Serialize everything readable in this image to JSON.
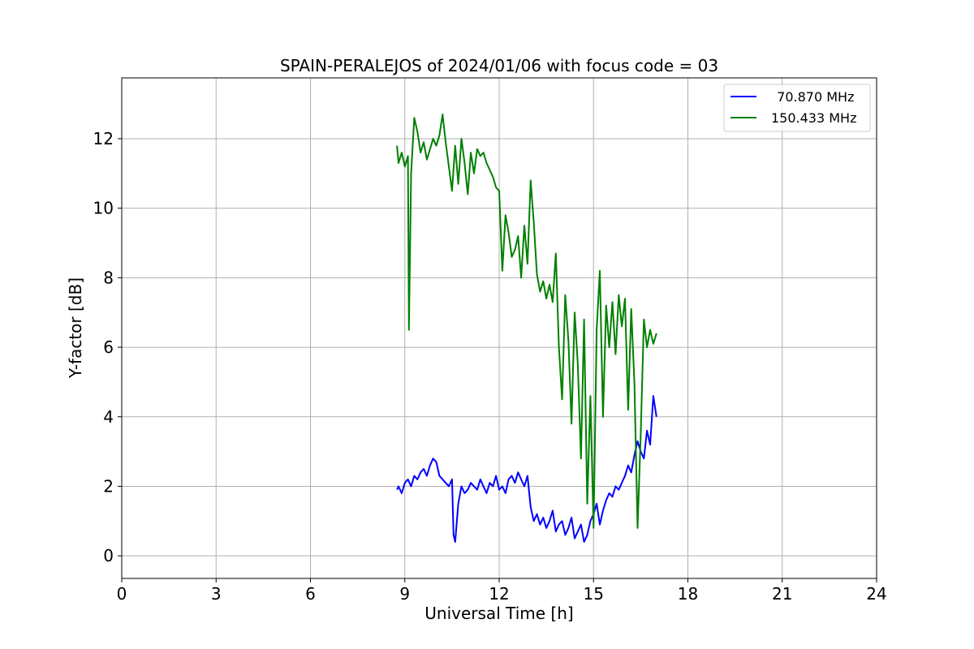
{
  "chart_data": {
    "type": "line",
    "title": "SPAIN-PERALEJOS of 2024/01/06 with focus code = 03",
    "xlabel": "Universal Time [h]",
    "ylabel": "Y-factor [dB]",
    "xlim": [
      0,
      24
    ],
    "ylim": [
      -0.65,
      13.75
    ],
    "xticks": [
      0,
      3,
      6,
      9,
      12,
      15,
      18,
      21,
      24
    ],
    "yticks": [
      0,
      2,
      4,
      6,
      8,
      10,
      12
    ],
    "grid": true,
    "legend_position": "upper-right",
    "series": [
      {
        "name": "  70.870 MHz",
        "color": "#0000ff",
        "x": [
          8.75,
          8.8,
          8.9,
          9.0,
          9.1,
          9.2,
          9.3,
          9.4,
          9.5,
          9.6,
          9.7,
          9.8,
          9.9,
          10.0,
          10.1,
          10.2,
          10.3,
          10.4,
          10.5,
          10.55,
          10.6,
          10.7,
          10.8,
          10.9,
          11.0,
          11.1,
          11.2,
          11.3,
          11.4,
          11.5,
          11.6,
          11.7,
          11.8,
          11.9,
          12.0,
          12.1,
          12.2,
          12.3,
          12.4,
          12.5,
          12.6,
          12.7,
          12.8,
          12.9,
          13.0,
          13.1,
          13.2,
          13.3,
          13.4,
          13.5,
          13.6,
          13.7,
          13.8,
          13.9,
          14.0,
          14.1,
          14.2,
          14.3,
          14.4,
          14.5,
          14.6,
          14.7,
          14.8,
          14.9,
          15.0,
          15.1,
          15.2,
          15.3,
          15.4,
          15.5,
          15.6,
          15.7,
          15.8,
          15.9,
          16.0,
          16.1,
          16.2,
          16.3,
          16.4,
          16.5,
          16.6,
          16.7,
          16.8,
          16.9,
          17.0
        ],
        "y": [
          1.9,
          2.0,
          1.8,
          2.1,
          2.2,
          2.0,
          2.3,
          2.2,
          2.4,
          2.5,
          2.3,
          2.6,
          2.8,
          2.7,
          2.3,
          2.2,
          2.1,
          2.0,
          2.2,
          0.6,
          0.4,
          1.5,
          2.0,
          1.8,
          1.9,
          2.1,
          2.0,
          1.9,
          2.2,
          2.0,
          1.8,
          2.1,
          2.0,
          2.3,
          1.9,
          2.0,
          1.8,
          2.2,
          2.3,
          2.1,
          2.4,
          2.2,
          2.0,
          2.3,
          1.4,
          1.0,
          1.2,
          0.9,
          1.1,
          0.8,
          1.0,
          1.3,
          0.7,
          0.9,
          1.0,
          0.6,
          0.8,
          1.1,
          0.5,
          0.7,
          0.9,
          0.4,
          0.6,
          1.0,
          1.2,
          1.5,
          0.9,
          1.3,
          1.6,
          1.8,
          1.7,
          2.0,
          1.9,
          2.1,
          2.3,
          2.6,
          2.4,
          2.9,
          3.3,
          3.0,
          2.8,
          3.6,
          3.2,
          4.6,
          4.0
        ]
      },
      {
        "name": "150.433 MHz",
        "color": "#008000",
        "x": [
          8.75,
          8.8,
          8.9,
          9.0,
          9.1,
          9.13,
          9.2,
          9.3,
          9.4,
          9.5,
          9.6,
          9.7,
          9.8,
          9.9,
          10.0,
          10.1,
          10.2,
          10.3,
          10.4,
          10.5,
          10.6,
          10.7,
          10.8,
          10.9,
          11.0,
          11.1,
          11.2,
          11.3,
          11.4,
          11.5,
          11.6,
          11.7,
          11.8,
          11.9,
          12.0,
          12.1,
          12.2,
          12.3,
          12.4,
          12.5,
          12.6,
          12.7,
          12.8,
          12.9,
          13.0,
          13.1,
          13.2,
          13.3,
          13.4,
          13.5,
          13.6,
          13.7,
          13.8,
          13.9,
          14.0,
          14.1,
          14.2,
          14.3,
          14.4,
          14.5,
          14.6,
          14.7,
          14.8,
          14.9,
          15.0,
          15.1,
          15.2,
          15.3,
          15.4,
          15.5,
          15.6,
          15.7,
          15.8,
          15.9,
          16.0,
          16.1,
          16.2,
          16.3,
          16.4,
          16.5,
          16.6,
          16.7,
          16.8,
          16.9,
          17.0
        ],
        "y": [
          11.8,
          11.3,
          11.6,
          11.2,
          11.5,
          6.5,
          11.0,
          12.6,
          12.2,
          11.6,
          11.9,
          11.4,
          11.7,
          12.0,
          11.8,
          12.1,
          12.7,
          11.9,
          11.2,
          10.5,
          11.8,
          10.7,
          12.0,
          11.3,
          10.4,
          11.6,
          11.0,
          11.7,
          11.5,
          11.6,
          11.3,
          11.1,
          10.9,
          10.6,
          10.5,
          8.2,
          9.8,
          9.3,
          8.6,
          8.8,
          9.2,
          8.0,
          9.5,
          8.4,
          10.8,
          9.6,
          8.1,
          7.6,
          7.9,
          7.4,
          7.8,
          7.3,
          8.7,
          6.0,
          4.5,
          7.5,
          6.2,
          3.8,
          7.0,
          5.5,
          2.8,
          6.8,
          1.5,
          4.6,
          0.8,
          6.5,
          8.2,
          4.0,
          7.2,
          6.0,
          7.3,
          5.8,
          7.5,
          6.6,
          7.4,
          4.2,
          7.1,
          5.0,
          0.8,
          3.5,
          6.8,
          6.0,
          6.5,
          6.1,
          6.4
        ]
      }
    ]
  }
}
